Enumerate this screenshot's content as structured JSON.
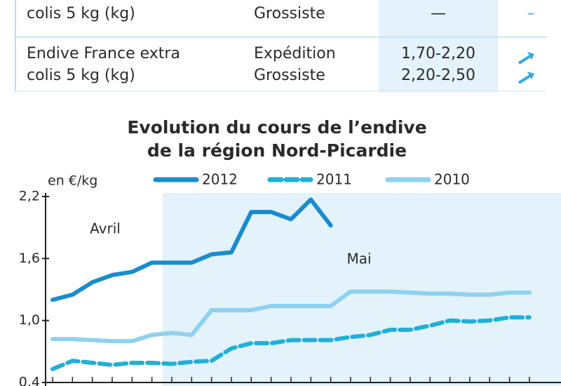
{
  "table": {
    "rows": [
      {
        "product": [
          "colis 5 kg (kg)"
        ],
        "stage": [
          "Grossiste"
        ],
        "price": [
          "—"
        ],
        "trend": "–"
      },
      {
        "product": [
          "Endive France extra",
          "colis 5 kg (kg)"
        ],
        "stage": [
          "Expédition",
          "Grossiste"
        ],
        "price": [
          "1,70-2,20",
          "2,20-2,50"
        ]
      }
    ]
  },
  "chart_data": {
    "type": "line",
    "title": [
      "Evolution du cours de l’endive",
      "de la région Nord-Picardie"
    ],
    "y_label": "en €/kg",
    "annotations": [
      "Avril",
      "Mai"
    ],
    "categories": [
      null,
      null,
      null,
      null,
      null,
      null,
      null,
      null,
      null,
      null,
      null,
      null,
      null,
      null,
      null,
      null,
      null,
      null,
      null,
      null,
      null,
      null,
      null,
      null,
      null
    ],
    "ylim": [
      0.4,
      2.2
    ],
    "yticks": [
      {
        "value": 0.4,
        "label": "0,4"
      },
      {
        "value": 1.0,
        "label": "1,0"
      },
      {
        "value": 1.6,
        "label": "1,6"
      },
      {
        "value": 2.2,
        "label": "2,2"
      }
    ],
    "series": [
      {
        "name": "2012",
        "color": "#1a8ccc",
        "style": "solid",
        "values": [
          1.2,
          1.25,
          1.37,
          1.44,
          1.47,
          1.56,
          1.56,
          1.56,
          1.64,
          1.66,
          2.05,
          2.05,
          1.98,
          2.17,
          1.92,
          null,
          null,
          null,
          null,
          null,
          null,
          null,
          null,
          null,
          null
        ]
      },
      {
        "name": "2011",
        "color": "#1fb0d9",
        "style": "dashed",
        "values": [
          0.53,
          0.61,
          0.59,
          0.57,
          0.59,
          0.59,
          0.58,
          0.6,
          0.61,
          0.73,
          0.78,
          0.78,
          0.81,
          0.81,
          0.81,
          0.84,
          0.86,
          0.91,
          0.91,
          0.95,
          1.0,
          0.99,
          1.0,
          1.03,
          1.03
        ]
      },
      {
        "name": "2010",
        "color": "#8ed2ef",
        "style": "solid",
        "values": [
          0.82,
          0.82,
          0.81,
          0.8,
          0.8,
          0.86,
          0.88,
          0.86,
          1.1,
          1.1,
          1.1,
          1.14,
          1.14,
          1.14,
          1.14,
          1.28,
          1.28,
          1.28,
          1.27,
          1.26,
          1.26,
          1.25,
          1.25,
          1.27,
          1.27
        ]
      }
    ]
  }
}
